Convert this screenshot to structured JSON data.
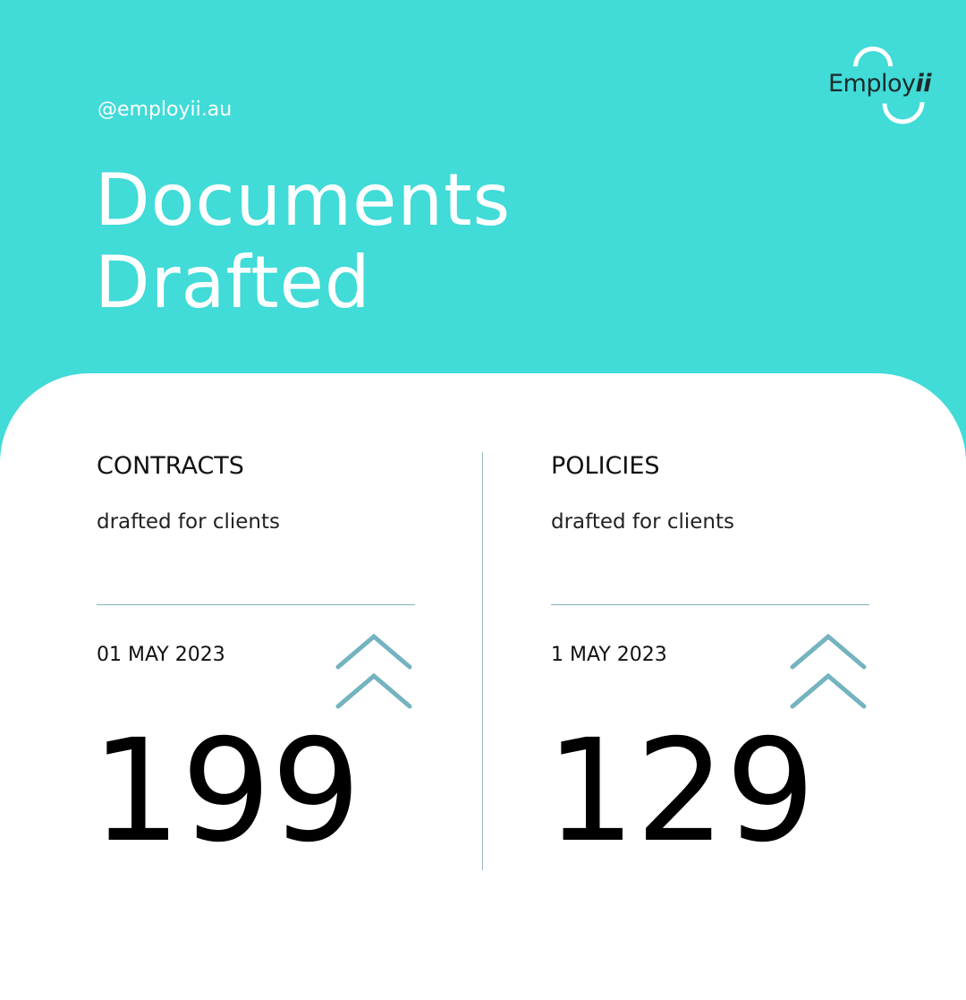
{
  "handle": "@employii.au",
  "title_line1": "Documents",
  "title_line2": "Drafted",
  "logo": {
    "text": "Employ",
    "text_bold": "ii"
  },
  "colors": {
    "background": "#41dbd8",
    "card": "#ffffff",
    "accent": "#74b3c0"
  },
  "stats": [
    {
      "category": "CONTRACTS",
      "subtitle": "drafted for clients",
      "date": "01 MAY 2023",
      "value": "199",
      "trend_icon": "double-chevron-up-icon"
    },
    {
      "category": "POLICIES",
      "subtitle": "drafted for clients",
      "date": "1 MAY 2023",
      "value": "129",
      "trend_icon": "double-chevron-up-icon"
    }
  ]
}
